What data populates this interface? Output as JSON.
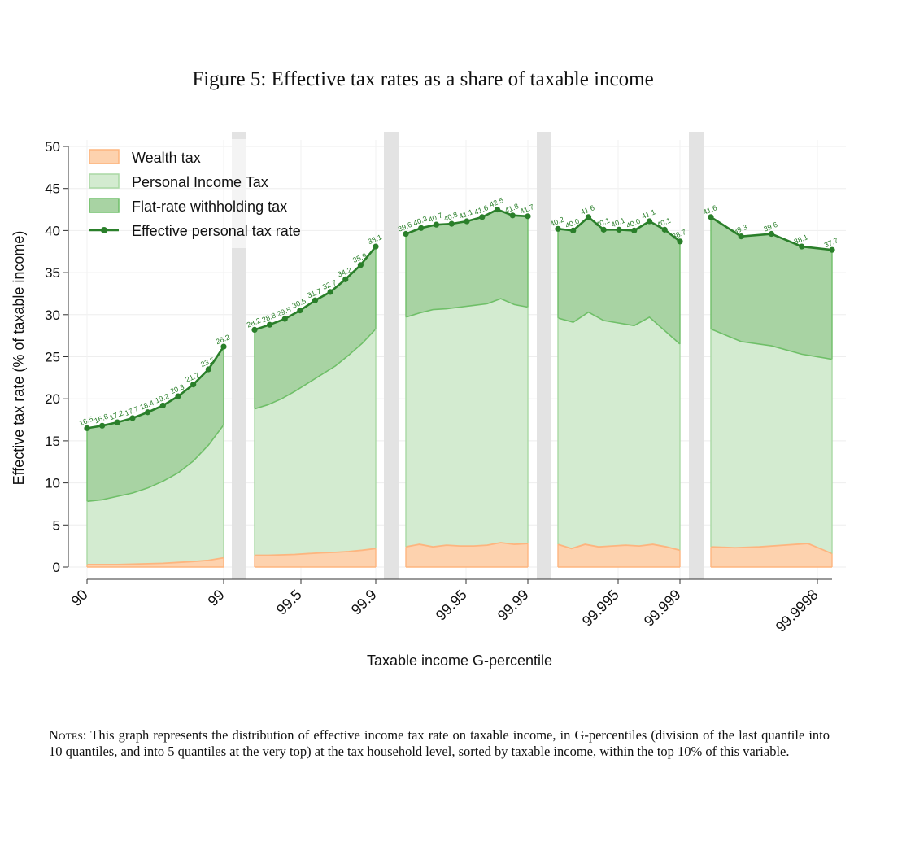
{
  "figure_title": "Figure 5: Effective tax rates as a share of taxable income",
  "notes": {
    "lead": "Notes:",
    "text": "This graph represents the distribution of effective income tax rate on taxable income, in G-percentiles (division of the last quantile into 10 quantiles, and into 5 quantiles at the very top) at the tax household level, sorted by taxable income, within the top 10% of this variable."
  },
  "colors": {
    "wealth_fill": "#fdd2ae",
    "wealth_line": "#fdb57f",
    "pit_fill": "#d3ebd0",
    "pit_line": "#a9d8a4",
    "flat_fill": "#a8d3a3",
    "flat_line": "#6fbf68",
    "effective_line": "#2a7f2a",
    "separator": "#e3e3e3",
    "grid": "#eeeeee"
  },
  "chart_data": {
    "type": "area",
    "title": "",
    "xlabel": "Taxable income G-percentile",
    "ylabel": "Effective tax rate (% of taxable income)",
    "ylim": [
      0,
      50
    ],
    "yticks": [
      0,
      5,
      10,
      15,
      20,
      25,
      30,
      35,
      40,
      45,
      50
    ],
    "legend": {
      "position": "top-left",
      "items": [
        "Wealth tax",
        "Personal Income Tax",
        "Flat-rate withholding tax",
        "Effective personal tax rate"
      ]
    },
    "x_tick_labels": [
      "90",
      "99",
      "99.5",
      "99.9",
      "99.95",
      "99.99",
      "99.995",
      "99.999",
      "99.9998"
    ],
    "segments": [
      {
        "name": "P90-P99",
        "x": [
          90,
          91,
          92,
          93,
          94,
          95,
          96,
          97,
          98,
          99
        ],
        "x_ticks": [
          "90",
          "99"
        ],
        "wealth_tax": [
          0.3,
          0.3,
          0.3,
          0.35,
          0.4,
          0.45,
          0.55,
          0.65,
          0.8,
          1.1
        ],
        "personal_income_tax_top": [
          7.8,
          8.0,
          8.4,
          8.8,
          9.4,
          10.2,
          11.2,
          12.6,
          14.5,
          16.9
        ],
        "effective_rate": [
          16.5,
          16.8,
          17.2,
          17.7,
          18.4,
          19.2,
          20.3,
          21.7,
          23.5,
          26.2
        ],
        "labels": [
          "16.5",
          "16.8",
          "17.2",
          "17.7",
          "18.4",
          "19.2",
          "20.3",
          "21.7",
          "23.5",
          "26.2"
        ]
      },
      {
        "name": "P99-P99.9",
        "x": [
          99.0,
          99.1,
          99.2,
          99.3,
          99.4,
          99.5,
          99.6,
          99.7,
          99.8,
          99.9
        ],
        "x_ticks": [
          "99.5",
          "99.9"
        ],
        "wealth_tax": [
          1.4,
          1.4,
          1.45,
          1.5,
          1.6,
          1.7,
          1.75,
          1.85,
          2.0,
          2.2
        ],
        "personal_income_tax_top": [
          18.8,
          19.3,
          20.0,
          20.9,
          21.9,
          22.9,
          23.9,
          25.2,
          26.6,
          28.3
        ],
        "effective_rate": [
          28.2,
          28.8,
          29.5,
          30.5,
          31.7,
          32.7,
          34.2,
          35.9,
          38.1
        ],
        "labels": [
          "28.2",
          "28.8",
          "29.5",
          "30.5",
          "31.7",
          "32.7",
          "34.2",
          "35.9",
          "38.1"
        ]
      },
      {
        "name": "P99.9-P99.99",
        "x": [
          99.9,
          99.91,
          99.92,
          99.93,
          99.94,
          99.95,
          99.96,
          99.97,
          99.98,
          99.99
        ],
        "x_ticks": [
          "99.95",
          "99.99"
        ],
        "wealth_tax": [
          2.4,
          2.7,
          2.4,
          2.6,
          2.5,
          2.5,
          2.6,
          2.9,
          2.7,
          2.8
        ],
        "personal_income_tax_top": [
          29.7,
          30.2,
          30.6,
          30.7,
          30.9,
          31.1,
          31.3,
          31.9,
          31.2,
          30.9
        ],
        "effective_rate": [
          39.6,
          40.3,
          40.7,
          40.8,
          41.1,
          41.6,
          42.5,
          41.8,
          41.7
        ],
        "labels": [
          "39.6",
          "40.3",
          "40.7",
          "40.8",
          "41.1",
          "41.6",
          "42.5",
          "41.8",
          "41.7"
        ]
      },
      {
        "name": "P99.99-P99.999",
        "x": [
          99.99,
          99.991,
          99.992,
          99.993,
          99.994,
          99.995,
          99.996,
          99.997,
          99.998,
          99.999
        ],
        "x_ticks": [
          "99.995",
          "99.999"
        ],
        "wealth_tax": [
          2.7,
          2.2,
          2.7,
          2.4,
          2.5,
          2.6,
          2.5,
          2.7,
          2.4,
          2.0
        ],
        "personal_income_tax_top": [
          29.6,
          29.1,
          30.3,
          29.3,
          29.0,
          28.7,
          29.7,
          28.1,
          26.5
        ],
        "effective_rate": [
          40.2,
          40.0,
          41.6,
          40.1,
          40.1,
          40.0,
          41.1,
          40.1,
          38.7
        ],
        "labels": [
          "40.2",
          "40.0",
          "41.6",
          "40.1",
          "40.1",
          "40.0",
          "41.1",
          "40.1",
          "38.7"
        ]
      },
      {
        "name": "P99.999-P100",
        "x": [
          99.999,
          99.9992,
          99.9994,
          99.9996,
          99.9998,
          100
        ],
        "x_ticks": [
          "99.9998"
        ],
        "wealth_tax": [
          2.4,
          2.3,
          2.4,
          2.6,
          2.8,
          1.6
        ],
        "personal_income_tax_top": [
          28.3,
          26.8,
          26.3,
          25.3,
          24.7
        ],
        "effective_rate": [
          41.6,
          39.3,
          39.6,
          38.1,
          37.7
        ],
        "labels": [
          "41.6",
          "39.3",
          "39.6",
          "38.1",
          "37.7"
        ]
      }
    ]
  }
}
